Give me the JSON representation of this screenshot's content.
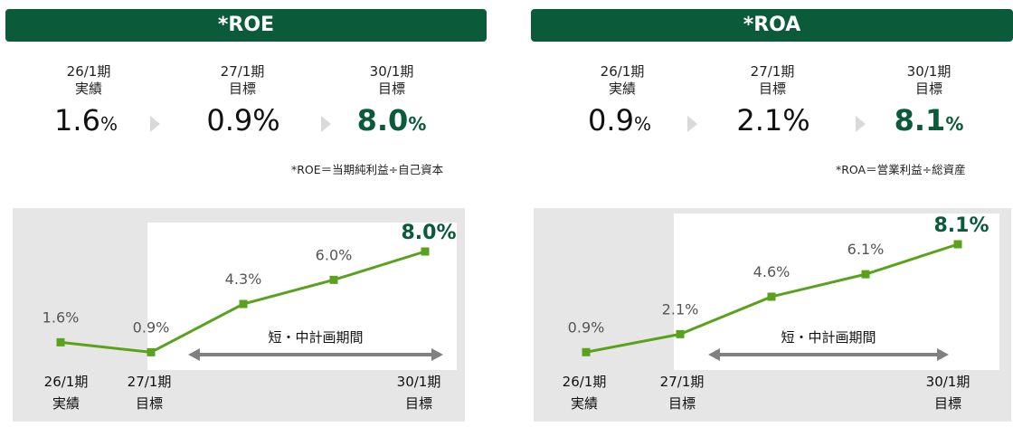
{
  "colors": {
    "header": "#0b5a3a",
    "line": "#5aa21c",
    "accent": "#0b5a3a",
    "plan_arrow": "#808080"
  },
  "panels": [
    {
      "title": "*ROE",
      "periods": [
        {
          "line1": "26/1期",
          "line2": "実績",
          "value": "1.6",
          "unit": "%"
        },
        {
          "line1": "27/1期",
          "line2": "目標",
          "value": "0.9%",
          "unit": ""
        },
        {
          "line1": "30/1期",
          "line2": "目標",
          "value": "8.0",
          "unit": "%"
        }
      ],
      "formula": "*ROE＝当期純利益÷自己資本",
      "plan_label": "短・中計画期間"
    },
    {
      "title": "*ROA",
      "periods": [
        {
          "line1": "26/1期",
          "line2": "実績",
          "value": "0.9",
          "unit": "%"
        },
        {
          "line1": "27/1期",
          "line2": "目標",
          "value": "2.1%",
          "unit": ""
        },
        {
          "line1": "30/1期",
          "line2": "目標",
          "value": "8.1",
          "unit": "%"
        }
      ],
      "formula": "*ROA＝営業利益÷総資産",
      "plan_label": "短・中計画期間"
    }
  ],
  "chart_data": [
    {
      "type": "line",
      "title": "*ROE",
      "x": [
        "26/1期\n実績",
        "27/1期\n目標",
        "",
        "",
        "30/1期\n目標"
      ],
      "values": [
        1.6,
        0.9,
        4.3,
        6.0,
        8.0
      ],
      "data_labels": [
        "1.6%",
        "0.9%",
        "4.3%",
        "6.0%",
        "8.0%"
      ],
      "xlabels": [
        [
          "26/1期",
          "実績"
        ],
        [
          "27/1期",
          "目標"
        ],
        [
          "30/1期",
          "目標"
        ]
      ],
      "annotation": "短・中計画期間",
      "ylim": [
        0,
        9
      ]
    },
    {
      "type": "line",
      "title": "*ROA",
      "x": [
        "26/1期\n実績",
        "27/1期\n目標",
        "",
        "",
        "30/1期\n目標"
      ],
      "values": [
        0.9,
        2.1,
        4.6,
        6.1,
        8.1
      ],
      "data_labels": [
        "0.9%",
        "2.1%",
        "4.6%",
        "6.1%",
        "8.1%"
      ],
      "xlabels": [
        [
          "26/1期",
          "実績"
        ],
        [
          "27/1期",
          "目標"
        ],
        [
          "30/1期",
          "目標"
        ]
      ],
      "annotation": "短・中計画期間",
      "ylim": [
        0,
        9
      ]
    }
  ]
}
